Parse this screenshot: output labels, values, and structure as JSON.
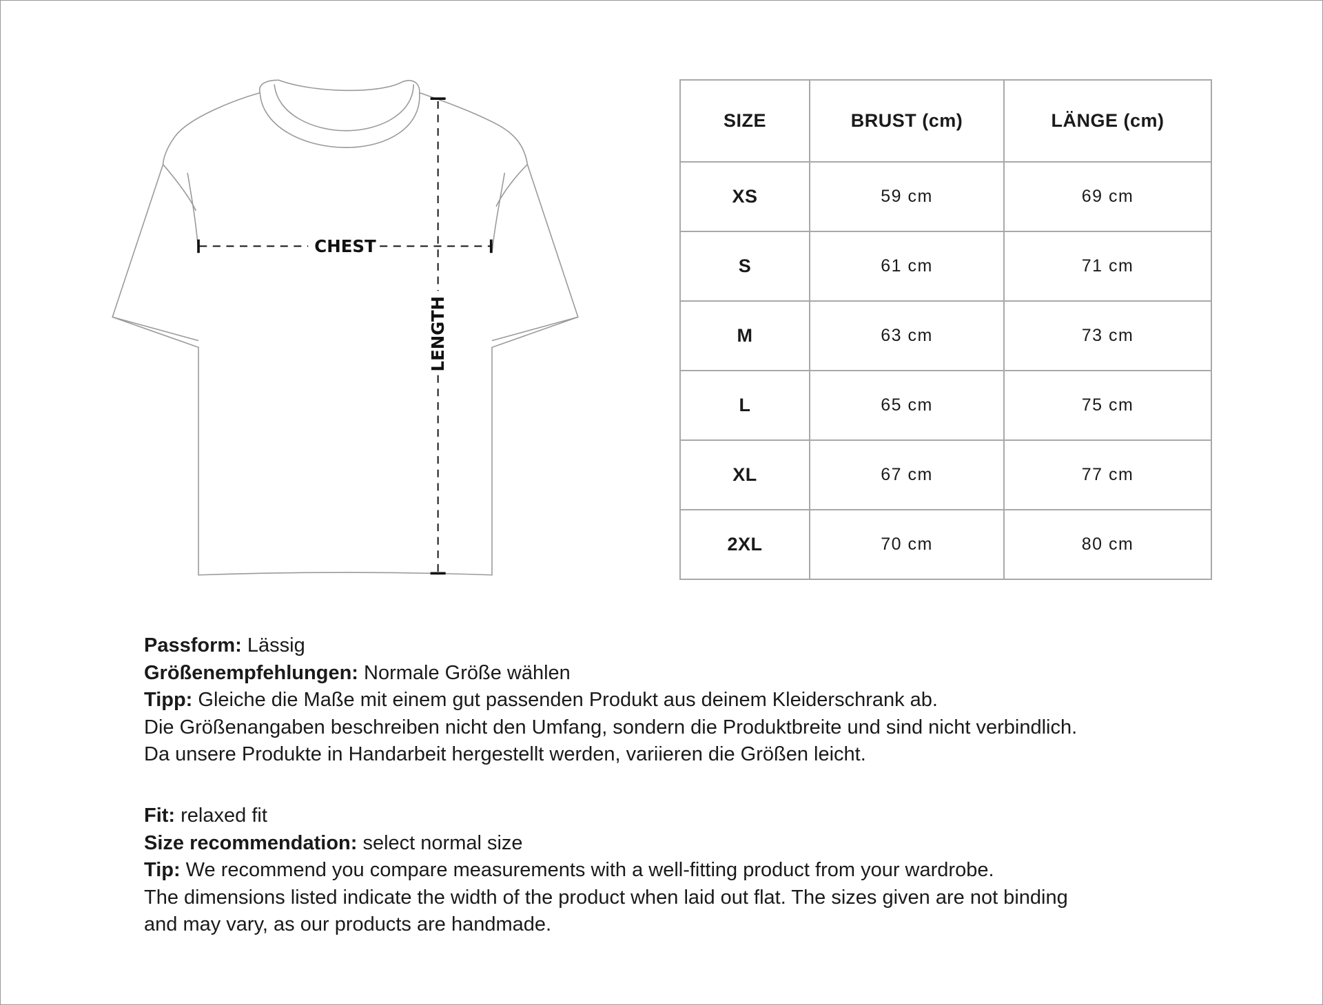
{
  "diagram": {
    "chest_label": "CHEST",
    "length_label": "LENGTH"
  },
  "size_table": {
    "headers": [
      "SIZE",
      "BRUST (cm)",
      "LÄNGE (cm)"
    ],
    "rows": [
      {
        "size": "XS",
        "brust": "59 cm",
        "laenge": "69 cm"
      },
      {
        "size": "S",
        "brust": "61 cm",
        "laenge": "71 cm"
      },
      {
        "size": "M",
        "brust": "63 cm",
        "laenge": "73 cm"
      },
      {
        "size": "L",
        "brust": "65 cm",
        "laenge": "75 cm"
      },
      {
        "size": "XL",
        "brust": "67 cm",
        "laenge": "77 cm"
      },
      {
        "size": "2XL",
        "brust": "70 cm",
        "laenge": "80 cm"
      }
    ]
  },
  "notes_de": {
    "fit_label": "Passform:",
    "fit_value": " Lässig",
    "rec_label": "Größenempfehlungen:",
    "rec_value": " Normale Größe wählen",
    "tip_label": "Tipp:",
    "tip_value": " Gleiche die Maße mit einem gut passenden Produkt aus deinem Kleiderschrank ab.",
    "line4": "Die Größenangaben beschreiben nicht den Umfang, sondern die Produktbreite und sind nicht verbindlich.",
    "line5": "Da unsere Produkte in Handarbeit hergestellt werden, variieren die Größen leicht."
  },
  "notes_en": {
    "fit_label": "Fit:",
    "fit_value": " relaxed fit",
    "rec_label": "Size recommendation:",
    "rec_value": " select normal size",
    "tip_label": "Tip:",
    "tip_value": " We recommend you compare measurements with a well-fitting product from your wardrobe.",
    "line4": "The dimensions listed indicate the width of the product when laid out flat. The sizes given are not binding",
    "line5": "and may vary, as our products are handmade."
  }
}
